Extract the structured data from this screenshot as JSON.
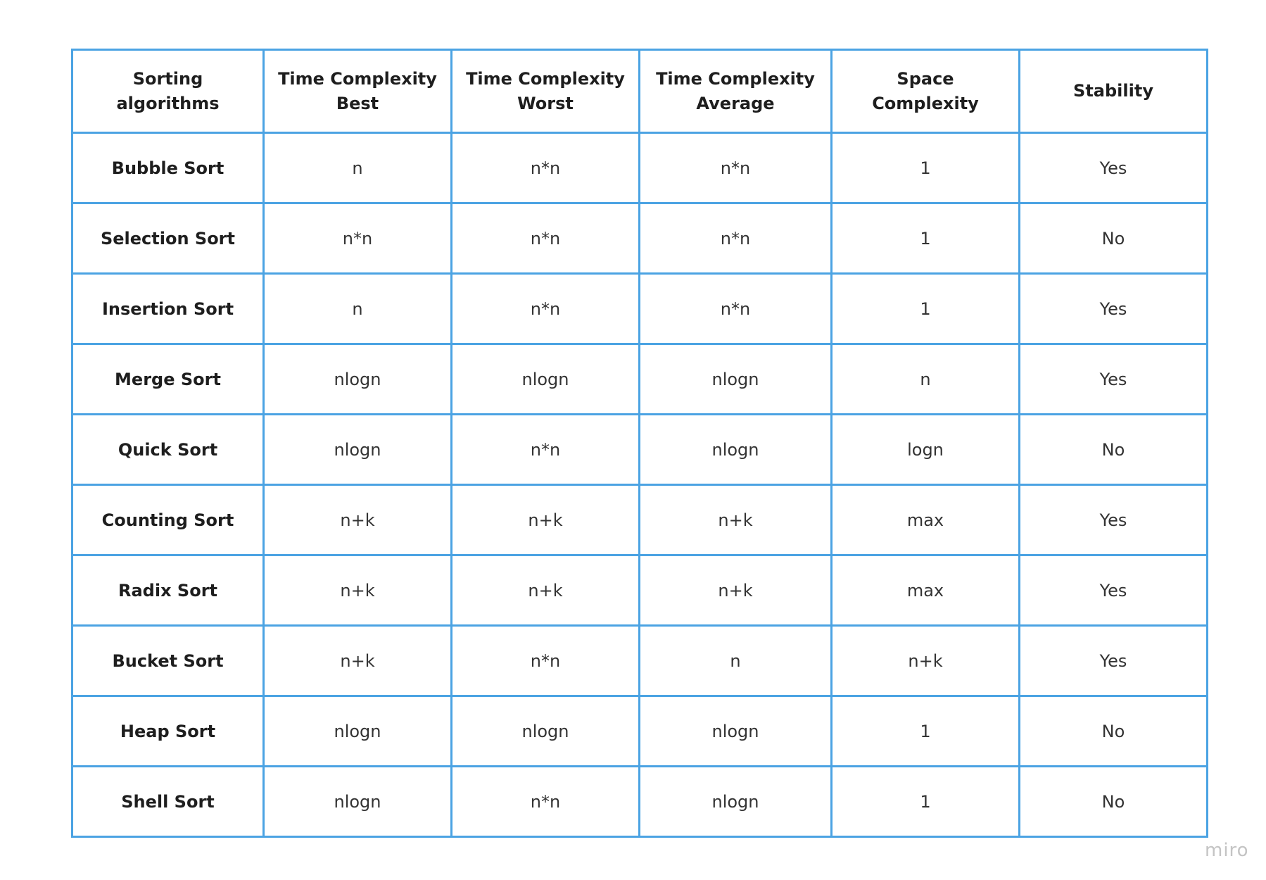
{
  "table": {
    "headers": [
      [
        "Sorting algorithms"
      ],
      [
        "Time Complexity",
        "Best"
      ],
      [
        "Time Complexity",
        "Worst"
      ],
      [
        "Time Complexity",
        "Average"
      ],
      [
        "Space Complexity"
      ],
      [
        "Stability"
      ]
    ],
    "rows": [
      [
        "Bubble Sort",
        "n",
        "n*n",
        "n*n",
        "1",
        "Yes"
      ],
      [
        "Selection Sort",
        "n*n",
        "n*n",
        "n*n",
        "1",
        "No"
      ],
      [
        "Insertion Sort",
        "n",
        "n*n",
        "n*n",
        "1",
        "Yes"
      ],
      [
        "Merge Sort",
        "nlogn",
        "nlogn",
        "nlogn",
        "n",
        "Yes"
      ],
      [
        "Quick Sort",
        "nlogn",
        "n*n",
        "nlogn",
        "logn",
        "No"
      ],
      [
        "Counting Sort",
        "n+k",
        "n+k",
        "n+k",
        "max",
        "Yes"
      ],
      [
        "Radix Sort",
        "n+k",
        "n+k",
        "n+k",
        "max",
        "Yes"
      ],
      [
        "Bucket Sort",
        "n+k",
        "n*n",
        "n",
        "n+k",
        "Yes"
      ],
      [
        "Heap Sort",
        "nlogn",
        "nlogn",
        "nlogn",
        "1",
        "No"
      ],
      [
        "Shell Sort",
        "nlogn",
        "n*n",
        "nlogn",
        "1",
        "No"
      ]
    ]
  },
  "watermark": "miro",
  "colors": {
    "border": "#4ba3e3",
    "text": "#1e1e1e",
    "watermark": "#c4c4c4"
  }
}
